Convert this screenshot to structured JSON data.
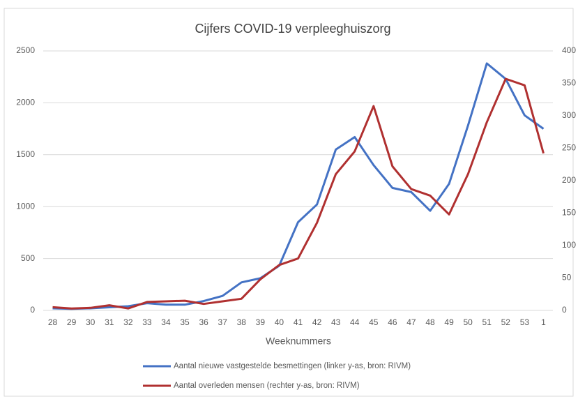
{
  "chart_data": {
    "type": "line",
    "title": "Cijfers COVID-19 verpleeghuiszorg",
    "x_label": "Weeknummers",
    "categories": [
      "28",
      "29",
      "30",
      "31",
      "32",
      "33",
      "34",
      "35",
      "36",
      "37",
      "38",
      "39",
      "40",
      "41",
      "42",
      "43",
      "44",
      "45",
      "46",
      "47",
      "48",
      "49",
      "50",
      "51",
      "52",
      "53",
      "1"
    ],
    "series": [
      {
        "name": "Aantal nieuwe vastgestelde besmettingen  (linker y-as, bron: RIVM)",
        "color": "#4472c4",
        "values": [
          20,
          15,
          20,
          30,
          40,
          70,
          55,
          55,
          90,
          140,
          270,
          310,
          430,
          850,
          1020,
          1550,
          1670,
          1400,
          1180,
          1140,
          960,
          1220,
          1780,
          2380,
          2230,
          1880,
          1750
        ]
      },
      {
        "name": "Aantal overleden mensen  (rechter y-as, bron: RIVM)",
        "color": "#b03030",
        "axis": "y2",
        "values": [
          5,
          3,
          4,
          8,
          3,
          13,
          14,
          15,
          10,
          14,
          18,
          48,
          70,
          80,
          135,
          210,
          245,
          315,
          222,
          187,
          177,
          148,
          210,
          290,
          357,
          347,
          242
        ]
      }
    ],
    "ylim": [
      0,
      2500
    ],
    "yticks": [
      0,
      500,
      1000,
      1500,
      2000,
      2500
    ],
    "y2lim": [
      0,
      400
    ],
    "y2ticks": [
      0,
      50,
      100,
      150,
      200,
      250,
      300,
      350,
      400
    ],
    "grid": true,
    "legend": "bottom"
  }
}
